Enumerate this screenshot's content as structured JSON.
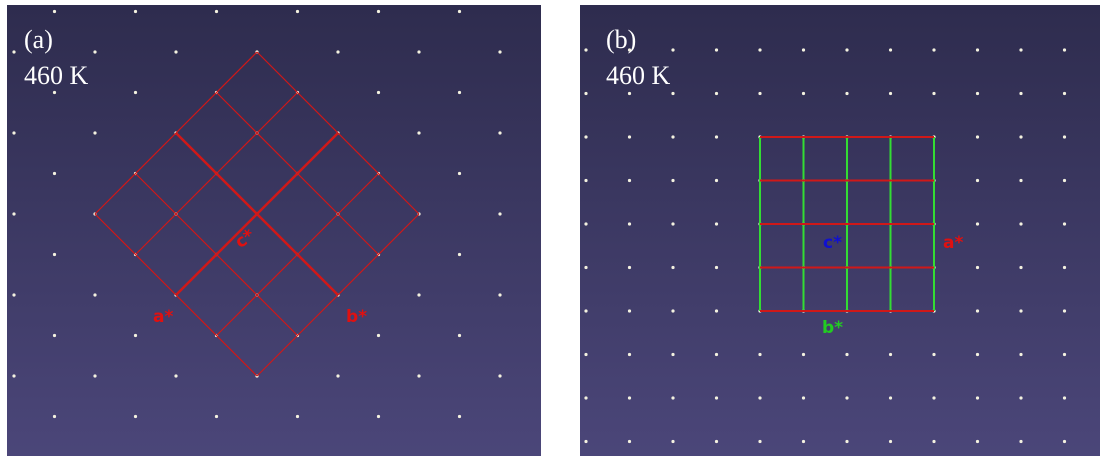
{
  "panels": [
    {
      "label": "(a)",
      "temperature": "460 K",
      "axes": {
        "a": "a*",
        "b": "b*",
        "c": "c*"
      }
    },
    {
      "label": "(b)",
      "temperature": "460 K",
      "axes": {
        "a": "a*",
        "b": "b*",
        "c": "c*"
      }
    }
  ]
}
